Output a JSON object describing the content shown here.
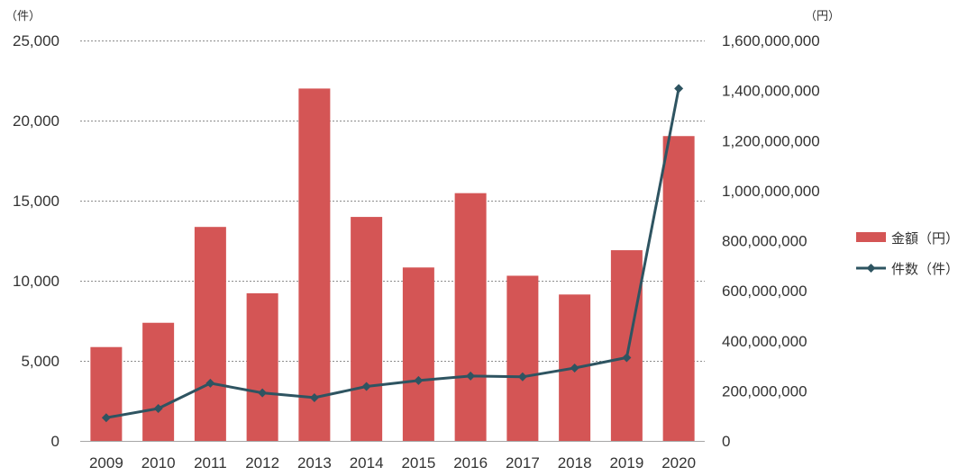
{
  "chart_data": {
    "type": "bar",
    "title": "",
    "categories": [
      "2009",
      "2010",
      "2011",
      "2012",
      "2013",
      "2014",
      "2015",
      "2016",
      "2017",
      "2018",
      "2019",
      "2020"
    ],
    "series": [
      {
        "name": "金額（円）",
        "type": "bar",
        "axis": "right",
        "color": "#d45555",
        "values": [
          375000000,
          472000000,
          855000000,
          590000000,
          1408000000,
          895000000,
          693000000,
          990000000,
          660000000,
          585000000,
          762000000,
          1218000000
        ]
      },
      {
        "name": "件数（件）",
        "type": "line",
        "axis": "left",
        "color": "#2e5461",
        "values": [
          1450,
          2020,
          3600,
          3000,
          2700,
          3400,
          3770,
          4050,
          4000,
          4550,
          5200,
          22000
        ]
      }
    ],
    "y_left": {
      "unit_label": "（件）",
      "ylim": [
        0,
        25000
      ],
      "ticks": [
        0,
        5000,
        10000,
        15000,
        20000,
        25000
      ],
      "tick_labels": [
        "0",
        "5,000",
        "10,000",
        "15,000",
        "20,000",
        "25,000"
      ]
    },
    "y_right": {
      "unit_label": "（円）",
      "ylim": [
        0,
        1600000000
      ],
      "ticks": [
        0,
        200000000,
        400000000,
        600000000,
        800000000,
        1000000000,
        1200000000,
        1400000000,
        1600000000
      ],
      "tick_labels": [
        "0",
        "200,000,000",
        "400,000,000",
        "600,000,000",
        "800,000,000",
        "1,000,000,000",
        "1,200,000,000",
        "1,400,000,000",
        "1,600,000,000"
      ]
    },
    "grid": "horizontal dashed",
    "legend_position": "right"
  }
}
